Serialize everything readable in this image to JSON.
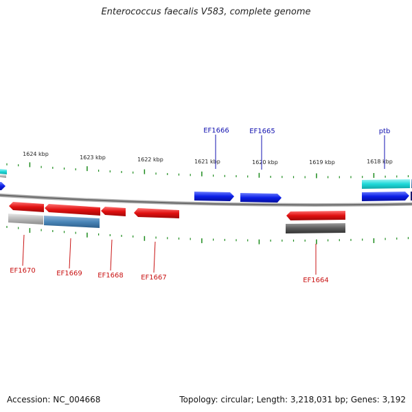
{
  "title": "Enterococcus faecalis V583, complete genome",
  "footer": {
    "accession": "Accession: NC_004668",
    "topology": "Topology: circular; Length: 3,218,031 bp; Genes: 3,192"
  },
  "colors": {
    "forward_gene": "#0a1ee6",
    "reverse_gene": "#e01010",
    "cyan_feature": "#1ed8d8",
    "blue_feature": "#4a86b8",
    "gray_feature": "#b8b8b8",
    "dark_feature": "#5a5a5a",
    "tick": "#1a8a1a",
    "forward_label": "#1212b0",
    "reverse_label": "#c81010"
  },
  "scale_labels": [
    "1624 kbp",
    "1623 kbp",
    "1622 kbp",
    "1621 kbp",
    "1620 kbp",
    "1619 kbp",
    "1618 kbp"
  ],
  "forward_genes": [
    {
      "label": "EF1666"
    },
    {
      "label": "EF1665"
    },
    {
      "label": "ptb"
    }
  ],
  "reverse_genes": [
    {
      "label": "EF1670"
    },
    {
      "label": "EF1669"
    },
    {
      "label": "EF1668"
    },
    {
      "label": "EF1667"
    },
    {
      "label": "EF1664"
    }
  ]
}
